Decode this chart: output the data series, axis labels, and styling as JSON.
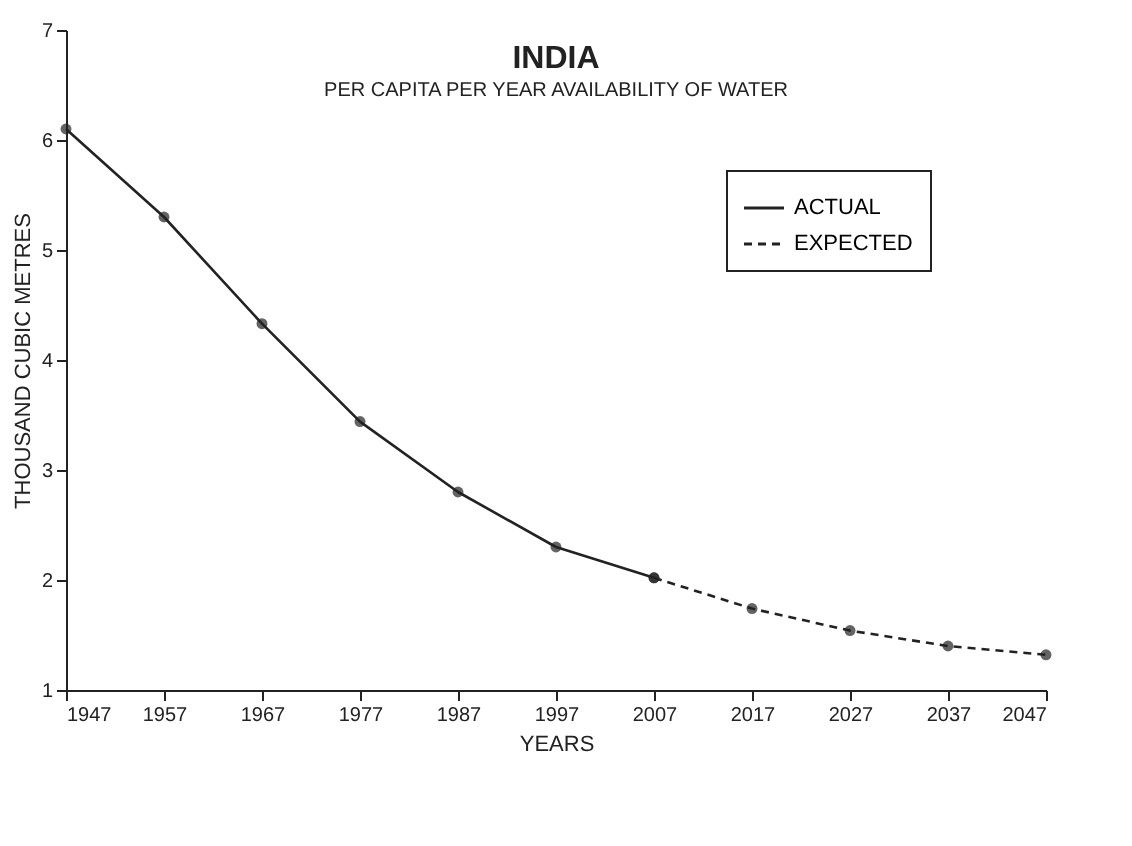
{
  "chart_data": {
    "type": "line",
    "title": "INDIA",
    "subtitle": "PER CAPITA PER YEAR AVAILABILITY OF WATER",
    "xlabel": "YEARS",
    "ylabel": "THOUSAND CUBIC METRES",
    "series": [
      {
        "name": "ACTUAL",
        "color": "#222222",
        "line_style": "solid",
        "x": [
          1947,
          1957,
          1967,
          1977,
          1987,
          1997,
          2007
        ],
        "values": [
          6.1,
          5.3,
          4.33,
          3.44,
          2.8,
          2.3,
          2.02
        ]
      },
      {
        "name": "EXPECTED",
        "color": "#222222",
        "line_style": "dashed",
        "x": [
          2007,
          2017,
          2027,
          2037,
          2047
        ],
        "values": [
          2.02,
          1.74,
          1.54,
          1.4,
          1.32
        ]
      }
    ],
    "marker": "circle",
    "xlim": [
      1947,
      2047
    ],
    "xticks": [
      1947,
      1957,
      1967,
      1977,
      1987,
      1997,
      2007,
      2017,
      2027,
      2037,
      2047
    ],
    "ylim": [
      1,
      7
    ],
    "yticks": [
      1,
      2,
      3,
      4,
      5,
      6,
      7
    ],
    "grid": false,
    "legend": "top right"
  }
}
